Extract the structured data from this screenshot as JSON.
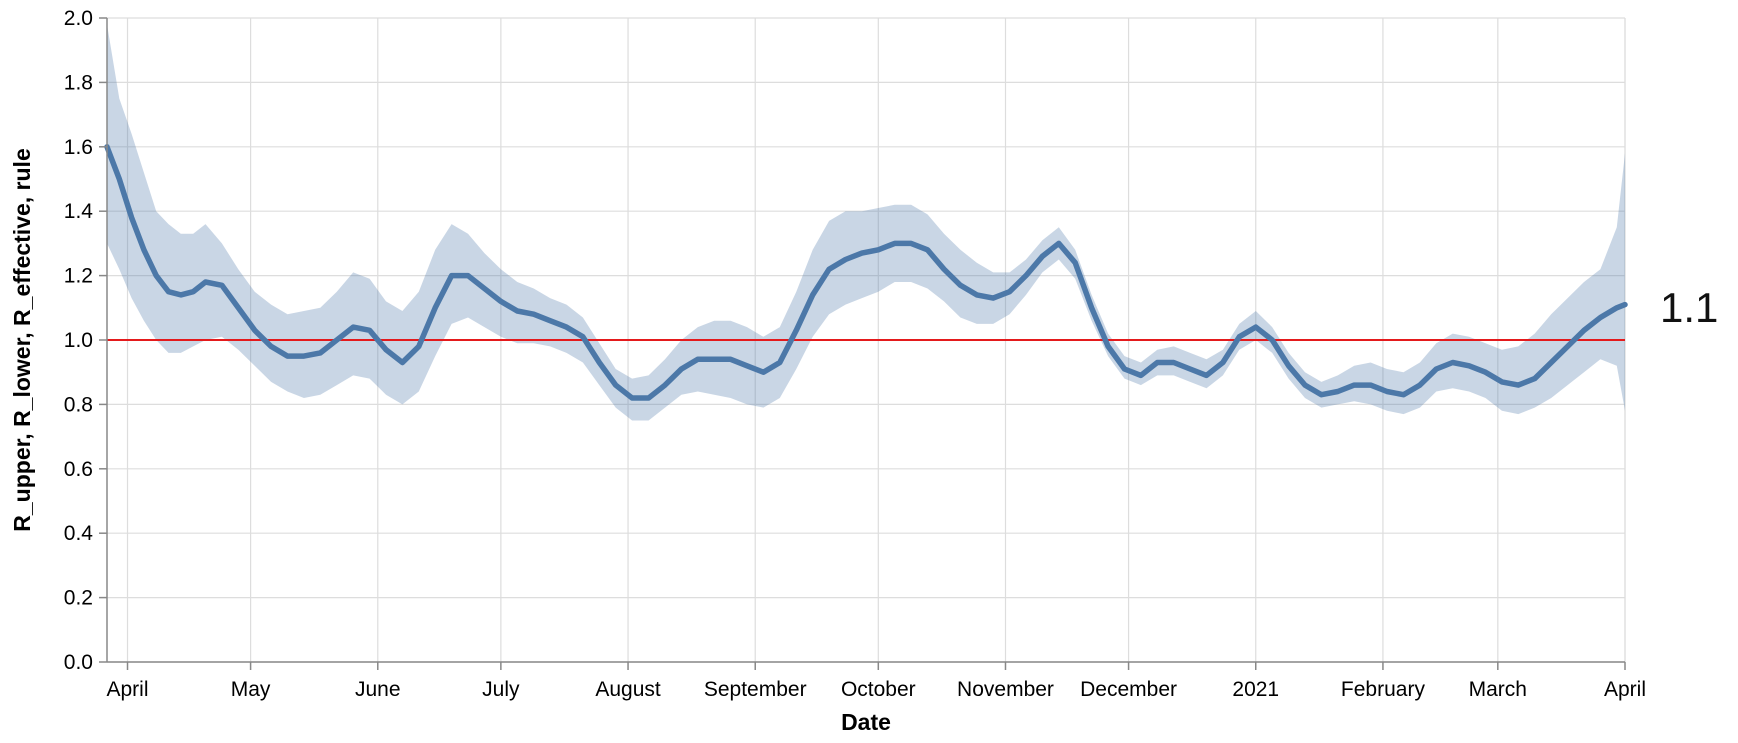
{
  "chart_data": {
    "type": "line",
    "xlabel": "Date",
    "ylabel": "R_upper, R_lower, R_effective, rule",
    "ylim": [
      0,
      2.0
    ],
    "xlim": [
      "2020-03-27",
      "2021-04-01"
    ],
    "y_ticks": [
      0.0,
      0.2,
      0.4,
      0.6,
      0.8,
      1.0,
      1.2,
      1.4,
      1.6,
      1.8,
      2.0
    ],
    "y_tick_labels": [
      "0.0",
      "0.2",
      "0.4",
      "0.6",
      "0.8",
      "1.0",
      "1.2",
      "1.4",
      "1.6",
      "1.8",
      "2.0"
    ],
    "x_ticks": [
      {
        "date": "2020-04-01",
        "label": "April"
      },
      {
        "date": "2020-05-01",
        "label": "May"
      },
      {
        "date": "2020-06-01",
        "label": "June"
      },
      {
        "date": "2020-07-01",
        "label": "July"
      },
      {
        "date": "2020-08-01",
        "label": "August"
      },
      {
        "date": "2020-09-01",
        "label": "September"
      },
      {
        "date": "2020-10-01",
        "label": "October"
      },
      {
        "date": "2020-11-01",
        "label": "November"
      },
      {
        "date": "2020-12-01",
        "label": "December"
      },
      {
        "date": "2021-01-01",
        "label": "2021"
      },
      {
        "date": "2021-02-01",
        "label": "February"
      },
      {
        "date": "2021-03-01",
        "label": "March"
      },
      {
        "date": "2021-04-01",
        "label": "April"
      }
    ],
    "grid": true,
    "rule": {
      "y": 1.0,
      "color": "#e41a1c"
    },
    "colors": {
      "line": "#4c78a8",
      "band": "#4c78a8",
      "band_opacity": 0.3
    },
    "series": [
      {
        "x": [
          "2020-03-27",
          "2020-03-30",
          "2020-04-02",
          "2020-04-05",
          "2020-04-08",
          "2020-04-11",
          "2020-04-14",
          "2020-04-17",
          "2020-04-20",
          "2020-04-24",
          "2020-04-28",
          "2020-05-02",
          "2020-05-06",
          "2020-05-10",
          "2020-05-14",
          "2020-05-18",
          "2020-05-22",
          "2020-05-26",
          "2020-05-30",
          "2020-06-03",
          "2020-06-07",
          "2020-06-11",
          "2020-06-15",
          "2020-06-19",
          "2020-06-23",
          "2020-06-27",
          "2020-07-01",
          "2020-07-05",
          "2020-07-09",
          "2020-07-13",
          "2020-07-17",
          "2020-07-21",
          "2020-07-25",
          "2020-07-29",
          "2020-08-02",
          "2020-08-06",
          "2020-08-10",
          "2020-08-14",
          "2020-08-18",
          "2020-08-22",
          "2020-08-26",
          "2020-08-30",
          "2020-09-03",
          "2020-09-07",
          "2020-09-11",
          "2020-09-15",
          "2020-09-19",
          "2020-09-23",
          "2020-09-27",
          "2020-10-01",
          "2020-10-05",
          "2020-10-09",
          "2020-10-13",
          "2020-10-17",
          "2020-10-21",
          "2020-10-25",
          "2020-10-29",
          "2020-11-02",
          "2020-11-06",
          "2020-11-10",
          "2020-11-14",
          "2020-11-18",
          "2020-11-22",
          "2020-11-26",
          "2020-11-30",
          "2020-12-04",
          "2020-12-08",
          "2020-12-12",
          "2020-12-16",
          "2020-12-20",
          "2020-12-24",
          "2020-12-28",
          "2021-01-01",
          "2021-01-05",
          "2021-01-09",
          "2021-01-13",
          "2021-01-17",
          "2021-01-21",
          "2021-01-25",
          "2021-01-29",
          "2021-02-02",
          "2021-02-06",
          "2021-02-10",
          "2021-02-14",
          "2021-02-18",
          "2021-02-22",
          "2021-02-26",
          "2021-03-02",
          "2021-03-06",
          "2021-03-10",
          "2021-03-14",
          "2021-03-18",
          "2021-03-22",
          "2021-03-26",
          "2021-03-30",
          "2021-04-01"
        ],
        "y": [
          1.6,
          1.5,
          1.38,
          1.28,
          1.2,
          1.15,
          1.14,
          1.15,
          1.18,
          1.17,
          1.1,
          1.03,
          0.98,
          0.95,
          0.95,
          0.96,
          1.0,
          1.04,
          1.03,
          0.97,
          0.93,
          0.98,
          1.1,
          1.2,
          1.2,
          1.16,
          1.12,
          1.09,
          1.08,
          1.06,
          1.04,
          1.01,
          0.93,
          0.86,
          0.82,
          0.82,
          0.86,
          0.91,
          0.94,
          0.94,
          0.94,
          0.92,
          0.9,
          0.93,
          1.03,
          1.14,
          1.22,
          1.25,
          1.27,
          1.28,
          1.3,
          1.3,
          1.28,
          1.22,
          1.17,
          1.14,
          1.13,
          1.15,
          1.2,
          1.26,
          1.3,
          1.24,
          1.1,
          0.98,
          0.91,
          0.89,
          0.93,
          0.93,
          0.91,
          0.89,
          0.93,
          1.01,
          1.04,
          1.0,
          0.92,
          0.86,
          0.83,
          0.84,
          0.86,
          0.86,
          0.84,
          0.83,
          0.86,
          0.91,
          0.93,
          0.92,
          0.9,
          0.87,
          0.86,
          0.88,
          0.93,
          0.98,
          1.03,
          1.07,
          1.1,
          1.11
        ]
      },
      {
        "x": [
          "2020-03-27",
          "2020-03-30",
          "2020-04-02",
          "2020-04-05",
          "2020-04-08",
          "2020-04-11",
          "2020-04-14",
          "2020-04-17",
          "2020-04-20",
          "2020-04-24",
          "2020-04-28",
          "2020-05-02",
          "2020-05-06",
          "2020-05-10",
          "2020-05-14",
          "2020-05-18",
          "2020-05-22",
          "2020-05-26",
          "2020-05-30",
          "2020-06-03",
          "2020-06-07",
          "2020-06-11",
          "2020-06-15",
          "2020-06-19",
          "2020-06-23",
          "2020-06-27",
          "2020-07-01",
          "2020-07-05",
          "2020-07-09",
          "2020-07-13",
          "2020-07-17",
          "2020-07-21",
          "2020-07-25",
          "2020-07-29",
          "2020-08-02",
          "2020-08-06",
          "2020-08-10",
          "2020-08-14",
          "2020-08-18",
          "2020-08-22",
          "2020-08-26",
          "2020-08-30",
          "2020-09-03",
          "2020-09-07",
          "2020-09-11",
          "2020-09-15",
          "2020-09-19",
          "2020-09-23",
          "2020-09-27",
          "2020-10-01",
          "2020-10-05",
          "2020-10-09",
          "2020-10-13",
          "2020-10-17",
          "2020-10-21",
          "2020-10-25",
          "2020-10-29",
          "2020-11-02",
          "2020-11-06",
          "2020-11-10",
          "2020-11-14",
          "2020-11-18",
          "2020-11-22",
          "2020-11-26",
          "2020-11-30",
          "2020-12-04",
          "2020-12-08",
          "2020-12-12",
          "2020-12-16",
          "2020-12-20",
          "2020-12-24",
          "2020-12-28",
          "2021-01-01",
          "2021-01-05",
          "2021-01-09",
          "2021-01-13",
          "2021-01-17",
          "2021-01-21",
          "2021-01-25",
          "2021-01-29",
          "2021-02-02",
          "2021-02-06",
          "2021-02-10",
          "2021-02-14",
          "2021-02-18",
          "2021-02-22",
          "2021-02-26",
          "2021-03-02",
          "2021-03-06",
          "2021-03-10",
          "2021-03-14",
          "2021-03-18",
          "2021-03-22",
          "2021-03-26",
          "2021-03-30",
          "2021-04-01"
        ],
        "y": [
          1.98,
          1.75,
          1.64,
          1.52,
          1.4,
          1.36,
          1.33,
          1.33,
          1.36,
          1.3,
          1.22,
          1.15,
          1.11,
          1.08,
          1.09,
          1.1,
          1.15,
          1.21,
          1.19,
          1.12,
          1.09,
          1.15,
          1.28,
          1.36,
          1.33,
          1.27,
          1.22,
          1.18,
          1.16,
          1.13,
          1.11,
          1.07,
          0.99,
          0.91,
          0.88,
          0.89,
          0.94,
          1.0,
          1.04,
          1.06,
          1.06,
          1.04,
          1.01,
          1.04,
          1.15,
          1.28,
          1.37,
          1.4,
          1.4,
          1.41,
          1.42,
          1.42,
          1.39,
          1.33,
          1.28,
          1.24,
          1.21,
          1.21,
          1.25,
          1.31,
          1.35,
          1.28,
          1.14,
          1.02,
          0.95,
          0.93,
          0.97,
          0.98,
          0.96,
          0.94,
          0.97,
          1.05,
          1.09,
          1.04,
          0.96,
          0.9,
          0.87,
          0.89,
          0.92,
          0.93,
          0.91,
          0.9,
          0.93,
          0.99,
          1.02,
          1.01,
          0.99,
          0.97,
          0.98,
          1.02,
          1.08,
          1.13,
          1.18,
          1.22,
          1.35,
          1.58
        ]
      },
      {
        "x": [
          "2020-03-27",
          "2020-03-30",
          "2020-04-02",
          "2020-04-05",
          "2020-04-08",
          "2020-04-11",
          "2020-04-14",
          "2020-04-17",
          "2020-04-20",
          "2020-04-24",
          "2020-04-28",
          "2020-05-02",
          "2020-05-06",
          "2020-05-10",
          "2020-05-14",
          "2020-05-18",
          "2020-05-22",
          "2020-05-26",
          "2020-05-30",
          "2020-06-03",
          "2020-06-07",
          "2020-06-11",
          "2020-06-15",
          "2020-06-19",
          "2020-06-23",
          "2020-06-27",
          "2020-07-01",
          "2020-07-05",
          "2020-07-09",
          "2020-07-13",
          "2020-07-17",
          "2020-07-21",
          "2020-07-25",
          "2020-07-29",
          "2020-08-02",
          "2020-08-06",
          "2020-08-10",
          "2020-08-14",
          "2020-08-18",
          "2020-08-22",
          "2020-08-26",
          "2020-08-30",
          "2020-09-03",
          "2020-09-07",
          "2020-09-11",
          "2020-09-15",
          "2020-09-19",
          "2020-09-23",
          "2020-09-27",
          "2020-10-01",
          "2020-10-05",
          "2020-10-09",
          "2020-10-13",
          "2020-10-17",
          "2020-10-21",
          "2020-10-25",
          "2020-10-29",
          "2020-11-02",
          "2020-11-06",
          "2020-11-10",
          "2020-11-14",
          "2020-11-18",
          "2020-11-22",
          "2020-11-26",
          "2020-11-30",
          "2020-12-04",
          "2020-12-08",
          "2020-12-12",
          "2020-12-16",
          "2020-12-20",
          "2020-12-24",
          "2020-12-28",
          "2021-01-01",
          "2021-01-05",
          "2021-01-09",
          "2021-01-13",
          "2021-01-17",
          "2021-01-21",
          "2021-01-25",
          "2021-01-29",
          "2021-02-02",
          "2021-02-06",
          "2021-02-10",
          "2021-02-14",
          "2021-02-18",
          "2021-02-22",
          "2021-02-26",
          "2021-03-02",
          "2021-03-06",
          "2021-03-10",
          "2021-03-14",
          "2021-03-18",
          "2021-03-22",
          "2021-03-26",
          "2021-03-30",
          "2021-04-01"
        ],
        "y": [
          1.3,
          1.22,
          1.13,
          1.06,
          1.0,
          0.96,
          0.96,
          0.98,
          1.0,
          1.01,
          0.97,
          0.92,
          0.87,
          0.84,
          0.82,
          0.83,
          0.86,
          0.89,
          0.88,
          0.83,
          0.8,
          0.84,
          0.95,
          1.05,
          1.07,
          1.04,
          1.01,
          0.99,
          0.99,
          0.98,
          0.96,
          0.93,
          0.86,
          0.79,
          0.75,
          0.75,
          0.79,
          0.83,
          0.84,
          0.83,
          0.82,
          0.8,
          0.79,
          0.82,
          0.91,
          1.01,
          1.08,
          1.11,
          1.13,
          1.15,
          1.18,
          1.18,
          1.16,
          1.12,
          1.07,
          1.05,
          1.05,
          1.08,
          1.14,
          1.21,
          1.25,
          1.19,
          1.06,
          0.95,
          0.88,
          0.86,
          0.89,
          0.89,
          0.87,
          0.85,
          0.89,
          0.97,
          1.0,
          0.96,
          0.88,
          0.82,
          0.79,
          0.8,
          0.81,
          0.8,
          0.78,
          0.77,
          0.79,
          0.84,
          0.85,
          0.84,
          0.82,
          0.78,
          0.77,
          0.79,
          0.82,
          0.86,
          0.9,
          0.94,
          0.92,
          0.78
        ]
      }
    ]
  },
  "annotation": {
    "text": "1.1"
  }
}
